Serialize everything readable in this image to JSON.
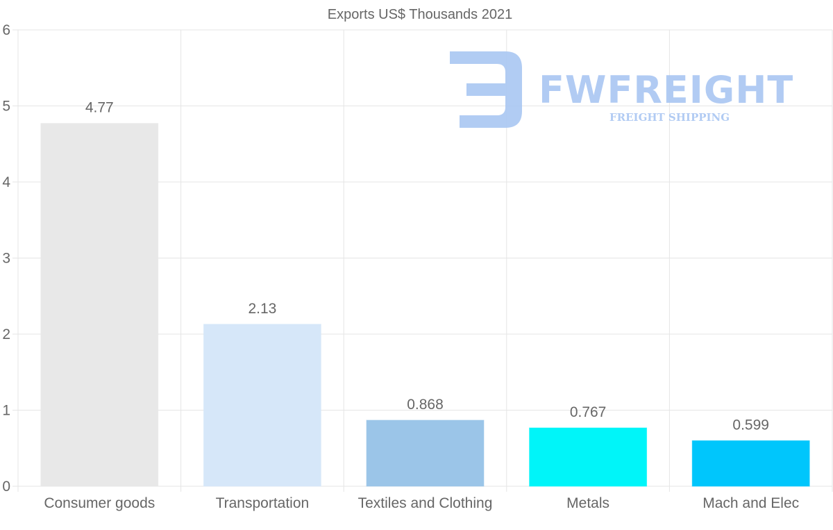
{
  "chart_data": {
    "type": "bar",
    "title": "Exports US$ Thousands 2021",
    "categories": [
      "Consumer goods",
      "Transportation",
      "Textiles and Clothing",
      "Metals",
      "Mach and Elec"
    ],
    "values": [
      4.77,
      2.13,
      0.868,
      0.767,
      0.599
    ],
    "value_labels": [
      "4.77",
      "2.13",
      "0.868",
      "0.767",
      "0.599"
    ],
    "bar_colors": [
      "#e8e8e8",
      "#d6e7f9",
      "#9bc5e8",
      "#00f5f9",
      "#00c6fc"
    ],
    "ylim": [
      0,
      6
    ],
    "yticks": [
      "0",
      "1",
      "2",
      "3",
      "4",
      "5",
      "6"
    ],
    "xlabel": "",
    "ylabel": "",
    "grid": true
  },
  "watermark": {
    "brand": "FWFREIGHT",
    "tagline": "FREIGHT SHIPPING",
    "color": "#a9c6f2"
  }
}
